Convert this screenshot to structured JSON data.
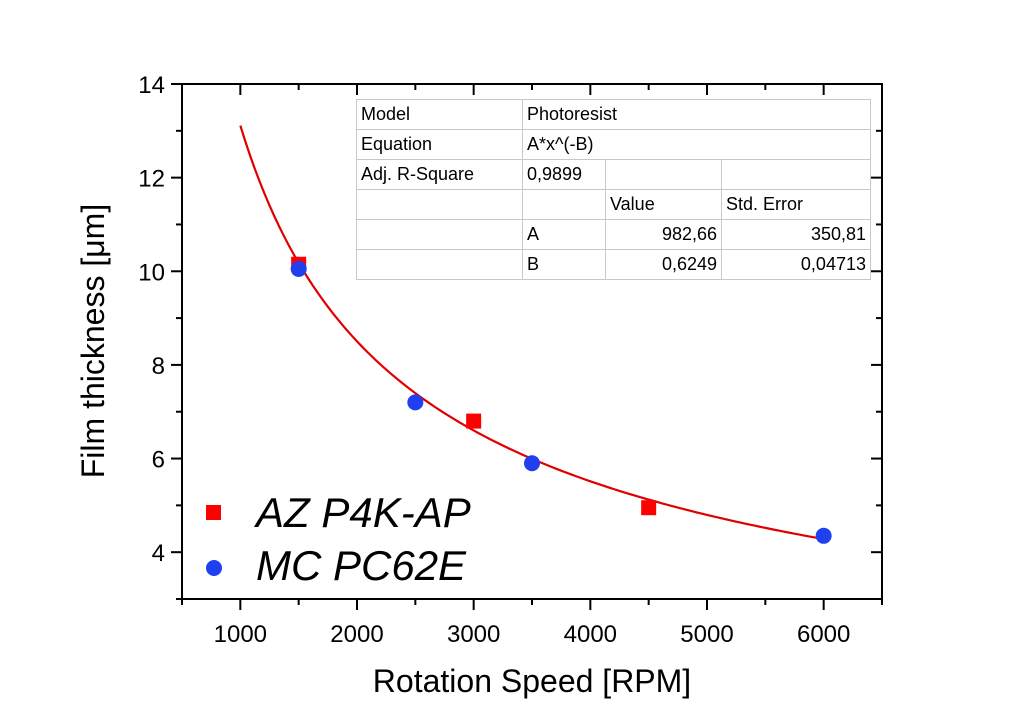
{
  "chart_data": {
    "type": "scatter",
    "title": "",
    "xlabel": "Rotation Speed [RPM]",
    "ylabel": "Film thickness [μm]",
    "xlim": [
      500,
      6500
    ],
    "ylim": [
      3,
      14
    ],
    "x_ticks": [
      1000,
      2000,
      3000,
      4000,
      5000,
      6000
    ],
    "x_tick_labels": [
      "1000",
      "2000",
      "3000",
      "4000",
      "5000",
      "6000"
    ],
    "x_minor_ticks": [
      500,
      1500,
      2500,
      3500,
      4500,
      5500,
      6500
    ],
    "y_ticks": [
      4,
      6,
      8,
      10,
      12,
      14
    ],
    "y_tick_labels": [
      "4",
      "6",
      "8",
      "10",
      "12",
      "14"
    ],
    "y_minor_ticks": [
      3,
      5,
      7,
      9,
      11,
      13
    ],
    "grid": false,
    "legend_position": "bottom-left",
    "series": [
      {
        "name": "AZ P4K-AP",
        "marker": "square",
        "color": "#ff0000",
        "x": [
          1500,
          3000,
          4500
        ],
        "y": [
          10.15,
          6.8,
          4.95
        ]
      },
      {
        "name": "MC PC62E",
        "marker": "circle",
        "color": "#2040f0",
        "x": [
          1500,
          2500,
          3500,
          6000
        ],
        "y": [
          10.05,
          7.2,
          5.9,
          4.35
        ]
      }
    ],
    "fit": {
      "name": "Photoresist",
      "equation": "A*x^(-B)",
      "color": "#e00000",
      "A": 982.66,
      "B": 0.6249,
      "x_range": [
        1000,
        6000
      ]
    },
    "fit_table": {
      "rows": [
        [
          "Model",
          "Photoresist",
          "",
          ""
        ],
        [
          "Equation",
          "A*x^(-B)",
          "",
          ""
        ],
        [
          "Adj. R-Square",
          "0,9899",
          "",
          ""
        ],
        [
          "",
          "",
          "Value",
          "Std. Error"
        ],
        [
          "",
          "A",
          "982,66",
          "350,81"
        ],
        [
          "",
          "B",
          "0,6249",
          "0,04713"
        ]
      ]
    }
  }
}
